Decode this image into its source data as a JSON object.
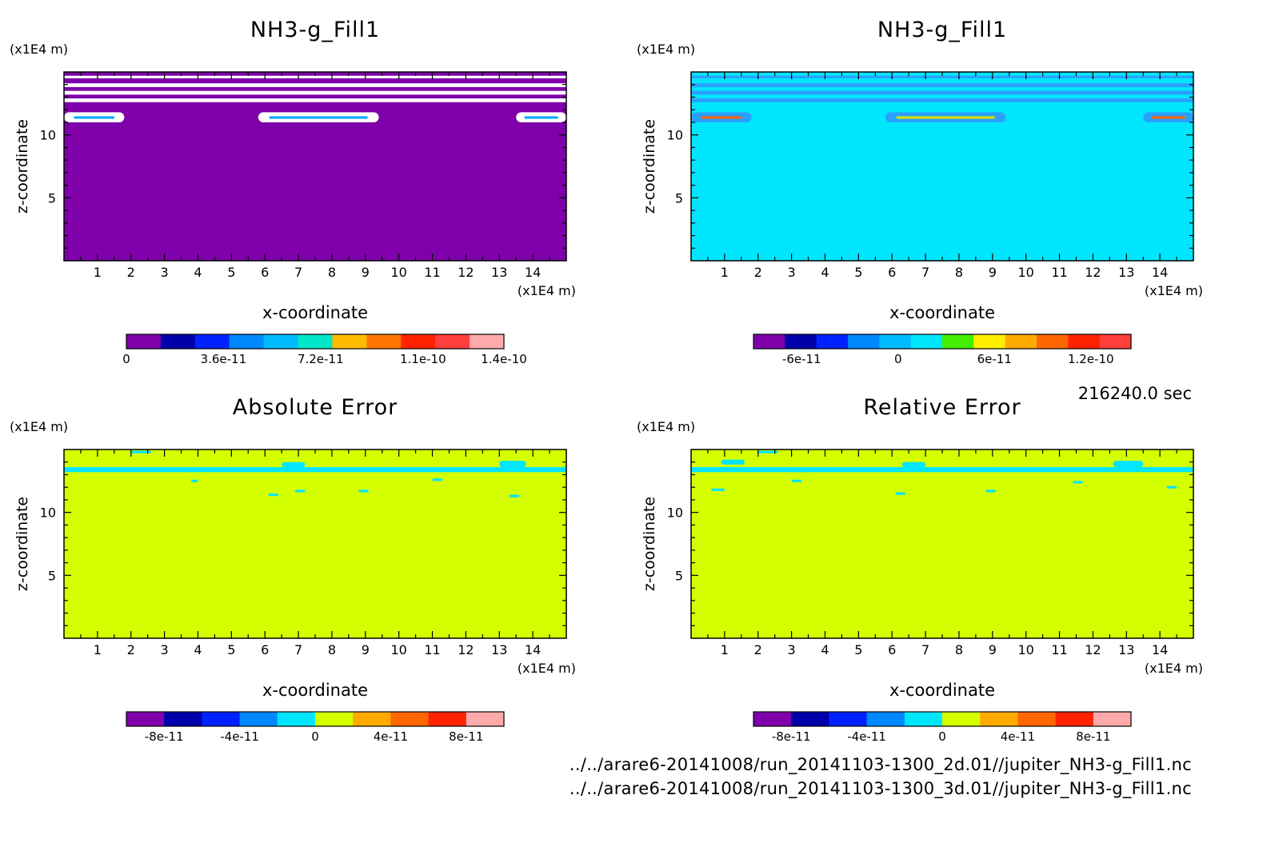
{
  "timestamp": "216240.0 sec",
  "footer": {
    "line1": "../../arare6-20141008/run_20141103-1300_2d.01//jupiter_NH3-g_Fill1.nc",
    "line2": "../../arare6-20141008/run_20141103-1300_3d.01//jupiter_NH3-g_Fill1.nc"
  },
  "chart_data": [
    {
      "type": "heatmap",
      "title": "NH3-g_Fill1",
      "xlabel": "x-coordinate",
      "ylabel": "z-coordinate",
      "x_unit": "(x1E4 m)",
      "y_unit": "(x1E4 m)",
      "xlim": [
        0,
        15
      ],
      "ylim": [
        0,
        15
      ],
      "x_ticks": [
        1,
        2,
        3,
        4,
        5,
        6,
        7,
        8,
        9,
        10,
        11,
        12,
        13,
        14
      ],
      "y_ticks": [
        5,
        10
      ],
      "background_color": "#7f00aa",
      "bands": [
        {
          "z": [
            14.5,
            14.7
          ],
          "color": "#ffffff"
        },
        {
          "z": [
            13.8,
            14.1
          ],
          "color": "#ffffff"
        },
        {
          "z": [
            13.2,
            13.5
          ],
          "color": "#ffffff"
        },
        {
          "z": [
            12.6,
            12.9
          ],
          "color": "#ffffff"
        }
      ],
      "blobs": [
        {
          "x": [
            0,
            1.8
          ],
          "z": [
            11.0,
            11.8
          ],
          "fill": "#ffffff",
          "core": "#00aaff"
        },
        {
          "x": [
            5.8,
            9.4
          ],
          "z": [
            11.0,
            11.8
          ],
          "fill": "#ffffff",
          "core": "#00aaff"
        },
        {
          "x": [
            13.5,
            15
          ],
          "z": [
            11.0,
            11.8
          ],
          "fill": "#ffffff",
          "core": "#00aaff"
        }
      ],
      "colorbar": {
        "colors": [
          "#7f00aa",
          "#0000aa",
          "#0022ff",
          "#0088ff",
          "#00bbff",
          "#00e8c8",
          "#ffbb00",
          "#ff7700",
          "#ff2200",
          "#ff3e3e",
          "#ffaaaa"
        ],
        "tick_labels": [
          "0",
          "3.6e-11",
          "7.2e-11",
          "1.1e-10",
          "1.4e-10"
        ],
        "tick_values": [
          0,
          3.6e-11,
          7.2e-11,
          1.1e-10,
          1.4e-10
        ],
        "range": [
          0,
          1.4e-10
        ]
      }
    },
    {
      "type": "heatmap",
      "title": "NH3-g_Fill1",
      "xlabel": "x-coordinate",
      "ylabel": "z-coordinate",
      "x_unit": "(x1E4 m)",
      "y_unit": "(x1E4 m)",
      "xlim": [
        0,
        15
      ],
      "ylim": [
        0,
        15
      ],
      "x_ticks": [
        1,
        2,
        3,
        4,
        5,
        6,
        7,
        8,
        9,
        10,
        11,
        12,
        13,
        14
      ],
      "y_ticks": [
        5,
        10
      ],
      "background_color": "#00e6ff",
      "bands": [
        {
          "z": [
            14.5,
            14.7
          ],
          "color": "#2aa0ff"
        },
        {
          "z": [
            13.8,
            14.1
          ],
          "color": "#2aa0ff"
        },
        {
          "z": [
            13.2,
            13.5
          ],
          "color": "#2aa0ff"
        },
        {
          "z": [
            12.6,
            12.9
          ],
          "color": "#2aa0ff"
        }
      ],
      "blobs": [
        {
          "x": [
            0,
            1.8
          ],
          "z": [
            11.0,
            11.8
          ],
          "fill": "#2aa0ff",
          "core": "#ff6600"
        },
        {
          "x": [
            5.8,
            9.4
          ],
          "z": [
            11.0,
            11.8
          ],
          "fill": "#2aa0ff",
          "core": "#d8e000"
        },
        {
          "x": [
            13.5,
            15
          ],
          "z": [
            11.0,
            11.8
          ],
          "fill": "#2aa0ff",
          "core": "#ff6600"
        }
      ],
      "colorbar": {
        "colors": [
          "#7f00aa",
          "#0000aa",
          "#0022ff",
          "#0088ff",
          "#00bbff",
          "#00e6ff",
          "#44ee00",
          "#ffee00",
          "#ffaa00",
          "#ff6600",
          "#ff2200",
          "#ff3e3e"
        ],
        "tick_labels": [
          "-6e-11",
          "0",
          "6e-11",
          "1.2e-10"
        ],
        "tick_values": [
          -6e-11,
          0,
          6e-11,
          1.2e-10
        ],
        "range": [
          -9e-11,
          1.45e-10
        ]
      }
    },
    {
      "type": "heatmap",
      "title": "Absolute Error",
      "xlabel": "x-coordinate",
      "ylabel": "z-coordinate",
      "x_unit": "(x1E4 m)",
      "y_unit": "(x1E4 m)",
      "xlim": [
        0,
        15
      ],
      "ylim": [
        0,
        15
      ],
      "x_ticks": [
        1,
        2,
        3,
        4,
        5,
        6,
        7,
        8,
        9,
        10,
        11,
        12,
        13,
        14
      ],
      "y_ticks": [
        5,
        10
      ],
      "background_color": "#d4ff00",
      "bands": [
        {
          "z": [
            13.2,
            13.6
          ],
          "color": "#00e6ff"
        }
      ],
      "blobs": [
        {
          "x": [
            2.0,
            2.6
          ],
          "z": [
            14.7,
            14.9
          ],
          "fill": "#00e6ff"
        },
        {
          "x": [
            6.5,
            7.2
          ],
          "z": [
            13.6,
            14.0
          ],
          "fill": "#00e6ff"
        },
        {
          "x": [
            13.0,
            13.8
          ],
          "z": [
            13.6,
            14.1
          ],
          "fill": "#00e6ff"
        },
        {
          "x": [
            3.8,
            4.0
          ],
          "z": [
            12.4,
            12.6
          ],
          "fill": "#00e6ff"
        },
        {
          "x": [
            6.1,
            6.4
          ],
          "z": [
            11.3,
            11.5
          ],
          "fill": "#00e6ff"
        },
        {
          "x": [
            6.9,
            7.2
          ],
          "z": [
            11.6,
            11.8
          ],
          "fill": "#00e6ff"
        },
        {
          "x": [
            8.8,
            9.1
          ],
          "z": [
            11.6,
            11.8
          ],
          "fill": "#00e6ff"
        },
        {
          "x": [
            11.0,
            11.3
          ],
          "z": [
            12.5,
            12.7
          ],
          "fill": "#00e6ff"
        },
        {
          "x": [
            13.3,
            13.6
          ],
          "z": [
            11.2,
            11.4
          ],
          "fill": "#00e6ff"
        }
      ],
      "colorbar": {
        "colors": [
          "#7f00aa",
          "#0000aa",
          "#0022ff",
          "#0088ff",
          "#00e6ff",
          "#d4ff00",
          "#ffaa00",
          "#ff6600",
          "#ff2200",
          "#ffaaaa"
        ],
        "tick_labels": [
          "-8e-11",
          "-4e-11",
          "0",
          "4e-11",
          "8e-11"
        ],
        "tick_values": [
          -8e-11,
          -4e-11,
          0,
          4e-11,
          8e-11
        ],
        "range": [
          -1e-10,
          1e-10
        ]
      }
    },
    {
      "type": "heatmap",
      "title": "Relative Error",
      "xlabel": "x-coordinate",
      "ylabel": "z-coordinate",
      "x_unit": "(x1E4 m)",
      "y_unit": "(x1E4 m)",
      "xlim": [
        0,
        15
      ],
      "ylim": [
        0,
        15
      ],
      "x_ticks": [
        1,
        2,
        3,
        4,
        5,
        6,
        7,
        8,
        9,
        10,
        11,
        12,
        13,
        14
      ],
      "y_ticks": [
        5,
        10
      ],
      "background_color": "#d4ff00",
      "bands": [
        {
          "z": [
            13.2,
            13.6
          ],
          "color": "#00e6ff"
        }
      ],
      "blobs": [
        {
          "x": [
            0.9,
            1.6
          ],
          "z": [
            13.8,
            14.2
          ],
          "fill": "#00e6ff"
        },
        {
          "x": [
            2.0,
            2.6
          ],
          "z": [
            14.7,
            14.9
          ],
          "fill": "#00e6ff"
        },
        {
          "x": [
            6.3,
            7.0
          ],
          "z": [
            13.6,
            14.0
          ],
          "fill": "#00e6ff"
        },
        {
          "x": [
            12.6,
            13.5
          ],
          "z": [
            13.6,
            14.1
          ],
          "fill": "#00e6ff"
        },
        {
          "x": [
            0.6,
            1.0
          ],
          "z": [
            11.7,
            11.9
          ],
          "fill": "#00e6ff"
        },
        {
          "x": [
            3.0,
            3.3
          ],
          "z": [
            12.4,
            12.6
          ],
          "fill": "#00e6ff"
        },
        {
          "x": [
            6.1,
            6.4
          ],
          "z": [
            11.4,
            11.6
          ],
          "fill": "#00e6ff"
        },
        {
          "x": [
            8.8,
            9.1
          ],
          "z": [
            11.6,
            11.8
          ],
          "fill": "#00e6ff"
        },
        {
          "x": [
            11.4,
            11.7
          ],
          "z": [
            12.3,
            12.5
          ],
          "fill": "#00e6ff"
        },
        {
          "x": [
            14.2,
            14.5
          ],
          "z": [
            11.9,
            12.1
          ],
          "fill": "#00e6ff"
        }
      ],
      "colorbar": {
        "colors": [
          "#7f00aa",
          "#0000aa",
          "#0022ff",
          "#0088ff",
          "#00e6ff",
          "#d4ff00",
          "#ffaa00",
          "#ff6600",
          "#ff2200",
          "#ffaaaa"
        ],
        "tick_labels": [
          "-8e-11",
          "-4e-11",
          "0",
          "4e-11",
          "8e-11"
        ],
        "tick_values": [
          -8e-11,
          -4e-11,
          0,
          4e-11,
          8e-11
        ],
        "range": [
          -1e-10,
          1e-10
        ]
      }
    }
  ]
}
